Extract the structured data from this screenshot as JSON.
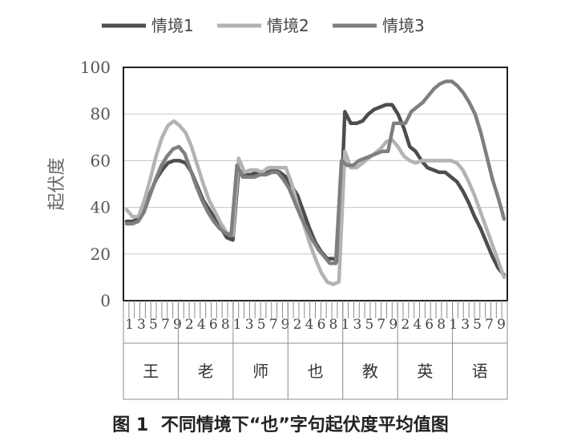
{
  "caption": {
    "figure_label": "图  1",
    "text": "不同情境下“也”字句起伏度平均值图"
  },
  "chart_data": {
    "type": "line",
    "ylabel": "起伏度",
    "ylim": [
      0,
      100
    ],
    "yticks": [
      0,
      20,
      40,
      60,
      80,
      100
    ],
    "grid": true,
    "legend_position": "top",
    "x_tick_labels": [
      "1",
      "3",
      "5",
      "7",
      "9",
      "2",
      "4",
      "6",
      "8",
      "1",
      "3",
      "5",
      "7",
      "9",
      "2",
      "4",
      "6",
      "8",
      "1",
      "3",
      "5",
      "7",
      "9",
      "2",
      "4",
      "6",
      "8",
      "1",
      "3",
      "5",
      "7",
      "9"
    ],
    "groups": [
      {
        "label": "王",
        "start": 0,
        "end": 10
      },
      {
        "label": "老",
        "start": 10,
        "end": 20
      },
      {
        "label": "师",
        "start": 20,
        "end": 30
      },
      {
        "label": "也",
        "start": 30,
        "end": 40
      },
      {
        "label": "教",
        "start": 40,
        "end": 50
      },
      {
        "label": "英",
        "start": 50,
        "end": 60
      },
      {
        "label": "语",
        "start": 60,
        "end": 70
      }
    ],
    "series": [
      {
        "name": "情境1",
        "color": "#4d4d4d",
        "values": [
          34,
          34,
          35,
          40,
          46,
          52,
          56,
          59,
          60,
          60,
          59,
          55,
          49,
          43,
          39,
          35,
          31,
          27,
          26,
          56,
          54,
          54,
          55,
          55,
          55,
          56,
          55,
          53,
          49,
          45,
          38,
          31,
          25,
          21,
          18,
          18,
          17,
          81,
          76,
          76,
          77,
          80,
          82,
          83,
          84,
          84,
          80,
          74,
          66,
          64,
          60,
          57,
          56,
          55,
          55,
          53,
          51,
          47,
          42,
          36,
          31,
          25,
          19,
          14,
          11
        ]
      },
      {
        "name": "情境2",
        "color": "#b3b3b3",
        "values": [
          39,
          36,
          36,
          43,
          52,
          62,
          70,
          75,
          77,
          75,
          72,
          66,
          58,
          50,
          43,
          38,
          33,
          29,
          28,
          61,
          55,
          56,
          56,
          55,
          57,
          57,
          57,
          57,
          50,
          41,
          33,
          25,
          18,
          12,
          8,
          7,
          8,
          64,
          57,
          57,
          59,
          61,
          63,
          65,
          68,
          69,
          66,
          62,
          60,
          59,
          60,
          60,
          60,
          60,
          60,
          60,
          59,
          56,
          51,
          45,
          38,
          31,
          24,
          17,
          10
        ]
      },
      {
        "name": "情境3",
        "color": "#7f7f7f",
        "values": [
          33,
          33,
          34,
          38,
          45,
          52,
          58,
          62,
          65,
          66,
          63,
          56,
          49,
          43,
          38,
          34,
          31,
          29,
          28,
          58,
          53,
          53,
          53,
          54,
          54,
          55,
          55,
          52,
          48,
          42,
          36,
          31,
          26,
          22,
          19,
          16,
          16,
          60,
          58,
          58,
          60,
          61,
          62,
          63,
          64,
          64,
          76,
          76,
          76,
          81,
          83,
          85,
          88,
          91,
          93,
          94,
          94,
          92,
          89,
          85,
          80,
          72,
          62,
          52,
          44,
          35
        ]
      }
    ]
  }
}
